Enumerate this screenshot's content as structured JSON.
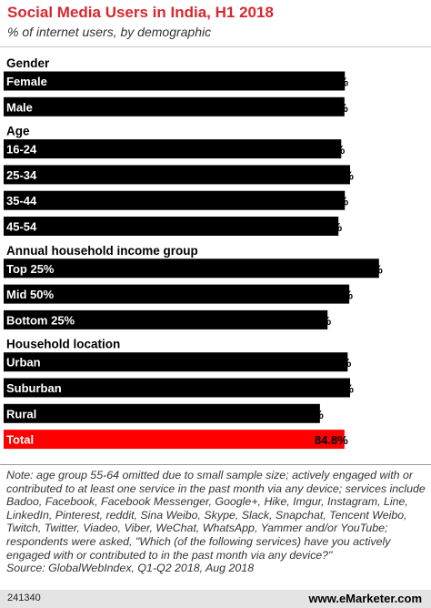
{
  "header": {
    "title": "Social Media Users in India, H1 2018",
    "subtitle": "% of internet users, by demographic"
  },
  "chart_data": {
    "type": "bar",
    "orientation": "horizontal",
    "title": "Social Media Users in India, H1 2018",
    "subtitle": "% of internet users, by demographic",
    "xlim": [
      0,
      100
    ],
    "grid": false,
    "groups": [
      {
        "label": "Gender",
        "items": [
          {
            "label": "Female",
            "value": 84.9,
            "value_label": "84.9%"
          },
          {
            "label": "Male",
            "value": 84.8,
            "value_label": "84.8%"
          }
        ]
      },
      {
        "label": "Age",
        "items": [
          {
            "label": "16-24",
            "value": 84.0,
            "value_label": "84.0%"
          },
          {
            "label": "25-34",
            "value": 86.2,
            "value_label": "86.2%"
          },
          {
            "label": "35-44",
            "value": 84.9,
            "value_label": "84.9%"
          },
          {
            "label": "45-54",
            "value": 83.3,
            "value_label": "83.3%"
          }
        ]
      },
      {
        "label": "Annual household income group",
        "items": [
          {
            "label": "Top 25%",
            "value": 93.4,
            "value_label": "93.4%"
          },
          {
            "label": "Mid 50%",
            "value": 86.0,
            "value_label": "86.0%"
          },
          {
            "label": "Bottom 25%",
            "value": 80.6,
            "value_label": "80.6%"
          }
        ]
      },
      {
        "label": "Household location",
        "items": [
          {
            "label": "Urban",
            "value": 85.6,
            "value_label": "85.6%"
          },
          {
            "label": "Suburban",
            "value": 86.2,
            "value_label": "86.2%"
          },
          {
            "label": "Rural",
            "value": 78.7,
            "value_label": "78.7%"
          }
        ]
      }
    ],
    "total": {
      "label": "Total",
      "value": 84.8,
      "value_label": "84.8%"
    },
    "colors": {
      "bar": "#000000",
      "total_bar": "#ff0000",
      "title": "#d7282f"
    }
  },
  "footer": {
    "note": "Note: age group 55-64 omitted due to small sample size; actively engaged with or contributed to at least one service in the past month via any device; services include Badoo, Facebook, Facebook Messenger, Google+, Hike, Imgur, Instagram, Line, LinkedIn, Pinterest, reddit, Sina Weibo, Skype, Slack, Snapchat, Tencent Weibo, Twitch, Twitter, Viadeo, Viber, WeChat, WhatsApp, Yammer and/or YouTube; respondents were asked, \"Which (of the following services) have you actively engaged with or contributed to in the past month via any device?\"",
    "source": "Source: GlobalWebIndex, Q1-Q2 2018, Aug 2018",
    "chart_id": "241340",
    "brand": "www.eMarketer.com"
  }
}
